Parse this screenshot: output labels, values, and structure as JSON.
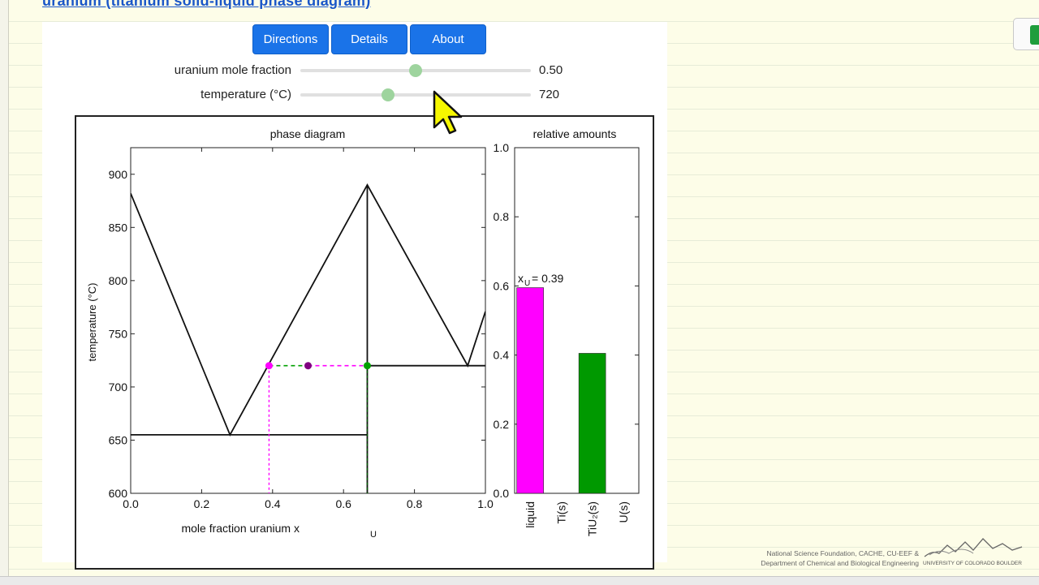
{
  "page": {
    "link_text": "uranium (titanium solid-liquid phase diagram)"
  },
  "buttons": {
    "directions": "Directions",
    "details": "Details",
    "about": "About"
  },
  "sliders": {
    "mole_fraction": {
      "label": "uranium mole fraction",
      "value": "0.50",
      "fraction": 0.5
    },
    "temperature": {
      "label": "temperature (°C)",
      "value": "720",
      "fraction": 0.38
    }
  },
  "phase_diagram": {
    "title": "phase diagram",
    "xlabel": "mole fraction uranium x",
    "xlabel_sub": "U",
    "ylabel": "temperature (°C)"
  },
  "bar_chart": {
    "title": "relative amounts",
    "annotation_prefix": "x",
    "annotation_sub": "U",
    "annotation_value": "= 0.39"
  },
  "chart_data": [
    {
      "type": "line",
      "title": "phase diagram",
      "xlabel": "mole fraction uranium x_U",
      "ylabel": "temperature (°C)",
      "xlim": [
        0.0,
        1.0
      ],
      "ylim": [
        600,
        925
      ],
      "x_ticks": [
        "0.0",
        "0.2",
        "0.4",
        "0.6",
        "0.8",
        "1.0"
      ],
      "y_ticks": [
        "600",
        "650",
        "700",
        "750",
        "800",
        "850",
        "900"
      ],
      "boundaries": [
        {
          "x": [
            0.0,
            0.28,
            0.667,
            0.95,
            1.0
          ],
          "y": [
            882,
            655,
            890,
            720,
            771
          ]
        },
        {
          "x": [
            0.0,
            0.667
          ],
          "y": [
            655,
            655
          ]
        },
        {
          "x": [
            0.667,
            1.0
          ],
          "y": [
            720,
            720
          ]
        },
        {
          "x": [
            0.667,
            0.667
          ],
          "y": [
            600,
            890
          ]
        }
      ],
      "tie_line": {
        "x": [
          0.39,
          0.667
        ],
        "y": [
          720,
          720
        ]
      },
      "points": [
        {
          "x": 0.39,
          "y": 720,
          "color": "#ff00ff"
        },
        {
          "x": 0.5,
          "y": 720,
          "color": "#800080"
        },
        {
          "x": 0.667,
          "y": 720,
          "color": "#00a000"
        }
      ],
      "drop_lines": [
        {
          "x": 0.39,
          "color": "#ff00ff"
        },
        {
          "x": 0.667,
          "color": "#006000"
        }
      ]
    },
    {
      "type": "bar",
      "title": "relative amounts",
      "categories": [
        "liquid",
        "Ti(s)",
        "TiU₂(s)",
        "U(s)"
      ],
      "values": [
        0.595,
        0.0,
        0.405,
        0.0
      ],
      "colors": [
        "#ff00ff",
        "#808080",
        "#009900",
        "#808080"
      ],
      "ylim": [
        0.0,
        1.0
      ],
      "y_ticks": [
        "0.0",
        "0.2",
        "0.4",
        "0.6",
        "0.8",
        "1.0"
      ]
    }
  ],
  "credits": {
    "line1": "National Science Foundation, CACHE, CU-EEF &",
    "line2": "Department of Chemical and Biological Engineering",
    "university": "UNIVERSITY OF COLORADO BOULDER"
  },
  "colors": {
    "button_blue": "#1a73e8",
    "slider_thumb": "#9ed49e",
    "background": "#fdfde8"
  }
}
